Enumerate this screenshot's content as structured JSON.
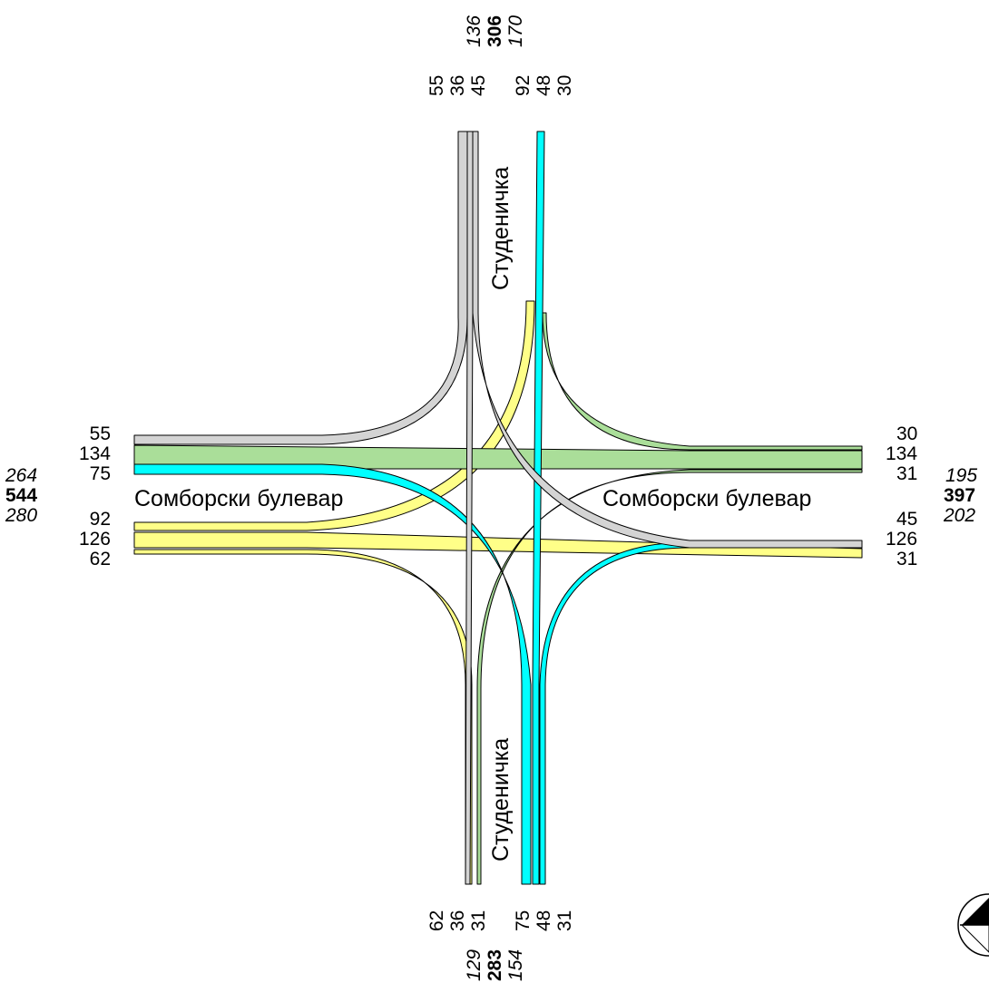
{
  "streets": {
    "north": "Студеничка",
    "south": "Студеничка",
    "west": "Сомборски булевар",
    "east": "Сомборски булевар"
  },
  "colors": {
    "from_north": "#d4d4d4",
    "from_south": "#00ffff",
    "from_west": "#ffff88",
    "from_east": "#aade99"
  },
  "north": {
    "totals": {
      "in": "136",
      "sum": "306",
      "out": "170"
    },
    "lanes": [
      "55",
      "36",
      "45",
      "92",
      "48",
      "30"
    ]
  },
  "south": {
    "totals": {
      "in": "129",
      "sum": "283",
      "out": "154"
    },
    "lanes": [
      "62",
      "36",
      "31",
      "75",
      "48",
      "31"
    ]
  },
  "west": {
    "totals": {
      "in": "264",
      "sum": "544",
      "out": "280"
    },
    "lanes": [
      "55",
      "134",
      "75",
      "92",
      "126",
      "62"
    ]
  },
  "east": {
    "totals": {
      "in": "195",
      "sum": "397",
      "out": "202"
    },
    "lanes": [
      "30",
      "134",
      "31",
      "45",
      "126",
      "31"
    ]
  },
  "compass": "compass-icon"
}
